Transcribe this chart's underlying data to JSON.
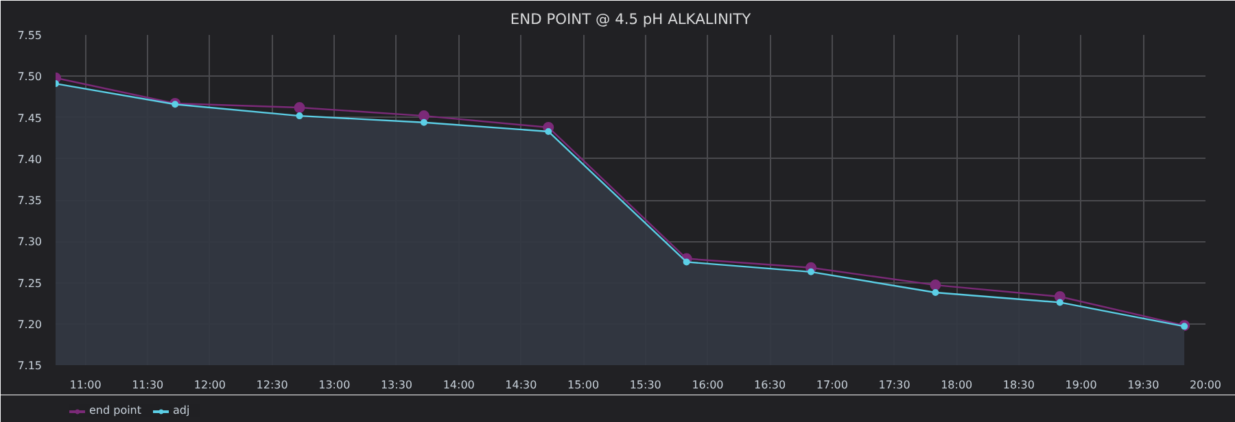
{
  "chart_data": {
    "type": "line",
    "title": "END POINT @ 4.5 pH ALKALINITY",
    "x": [
      10.76,
      11.72,
      12.72,
      13.72,
      14.72,
      15.83,
      16.83,
      17.83,
      18.83,
      19.83
    ],
    "series": [
      {
        "name": "end point",
        "color": "#7b2a78",
        "values": [
          7.498,
          7.467,
          7.462,
          7.452,
          7.438,
          7.279,
          7.268,
          7.247,
          7.233,
          7.198
        ]
      },
      {
        "name": "adj",
        "color": "#5ccfe6",
        "type": "area",
        "values": [
          7.491,
          7.466,
          7.452,
          7.444,
          7.433,
          7.275,
          7.263,
          7.238,
          7.226,
          7.197
        ]
      }
    ],
    "xlim": [
      10.76,
      20.0
    ],
    "xticks": [
      {
        "value": 11,
        "label": "11:00"
      },
      {
        "value": 11.5,
        "label": "11:30"
      },
      {
        "value": 12,
        "label": "12:00"
      },
      {
        "value": 12.5,
        "label": "12:30"
      },
      {
        "value": 13,
        "label": "13:00"
      },
      {
        "value": 13.5,
        "label": "13:30"
      },
      {
        "value": 14,
        "label": "14:00"
      },
      {
        "value": 14.5,
        "label": "14:30"
      },
      {
        "value": 15,
        "label": "15:00"
      },
      {
        "value": 15.5,
        "label": "15:30"
      },
      {
        "value": 16,
        "label": "16:00"
      },
      {
        "value": 16.5,
        "label": "16:30"
      },
      {
        "value": 17,
        "label": "17:00"
      },
      {
        "value": 17.5,
        "label": "17:30"
      },
      {
        "value": 18,
        "label": "18:00"
      },
      {
        "value": 18.5,
        "label": "18:30"
      },
      {
        "value": 19,
        "label": "19:00"
      },
      {
        "value": 19.5,
        "label": "19:30"
      },
      {
        "value": 20,
        "label": "20:00"
      }
    ],
    "ylim": [
      7.15,
      7.55
    ],
    "yticks": [
      {
        "value": 7.15,
        "label": "7.15"
      },
      {
        "value": 7.2,
        "label": "7.20"
      },
      {
        "value": 7.25,
        "label": "7.25"
      },
      {
        "value": 7.3,
        "label": "7.30"
      },
      {
        "value": 7.35,
        "label": "7.35"
      },
      {
        "value": 7.4,
        "label": "7.40"
      },
      {
        "value": 7.45,
        "label": "7.45"
      },
      {
        "value": 7.5,
        "label": "7.50"
      },
      {
        "value": 7.55,
        "label": "7.55"
      }
    ],
    "grid": true,
    "legend": "bottom left",
    "marker": "circle",
    "line_style": "solid"
  }
}
